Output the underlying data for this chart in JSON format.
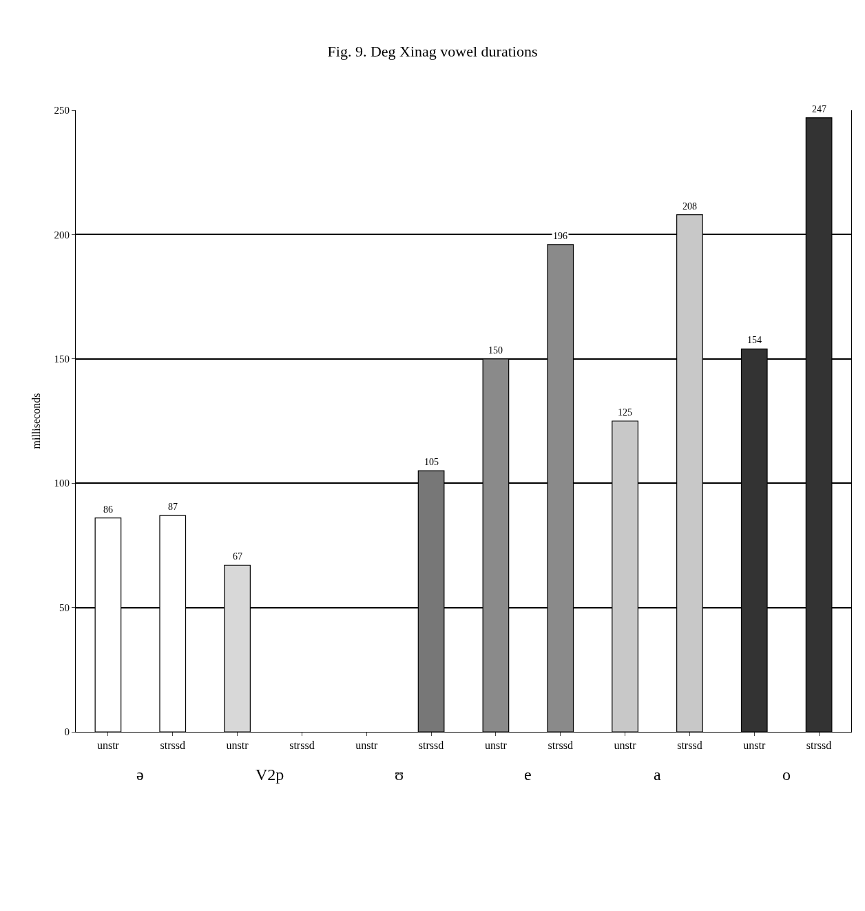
{
  "chart_data": {
    "type": "bar",
    "title": "Fig. 9. Deg Xinag vowel durations",
    "ylabel": "milliseconds",
    "categories": [
      "unstr",
      "strssd",
      "unstr",
      "strssd",
      "unstr",
      "strssd",
      "unstr",
      "strssd",
      "unstr",
      "strssd",
      "unstr",
      "strssd"
    ],
    "values": [
      86,
      87,
      67,
      null,
      null,
      105,
      150,
      196,
      125,
      208,
      154,
      247
    ],
    "colors": [
      "#ffffff",
      "#ffffff",
      "#d8d8d8",
      "#ffffff",
      "#ffffff",
      "#777777",
      "#8a8a8a",
      "#8a8a8a",
      "#c8c8c8",
      "#c8c8c8",
      "#333333",
      "#333333"
    ],
    "annotations": [
      "ə",
      "V2p",
      "ʊ",
      "e",
      "a",
      "o"
    ],
    "ylim": [
      0,
      250
    ],
    "yticks": [
      0,
      50,
      100,
      150,
      200,
      250
    ],
    "grid": "y",
    "data_labels": true
  }
}
